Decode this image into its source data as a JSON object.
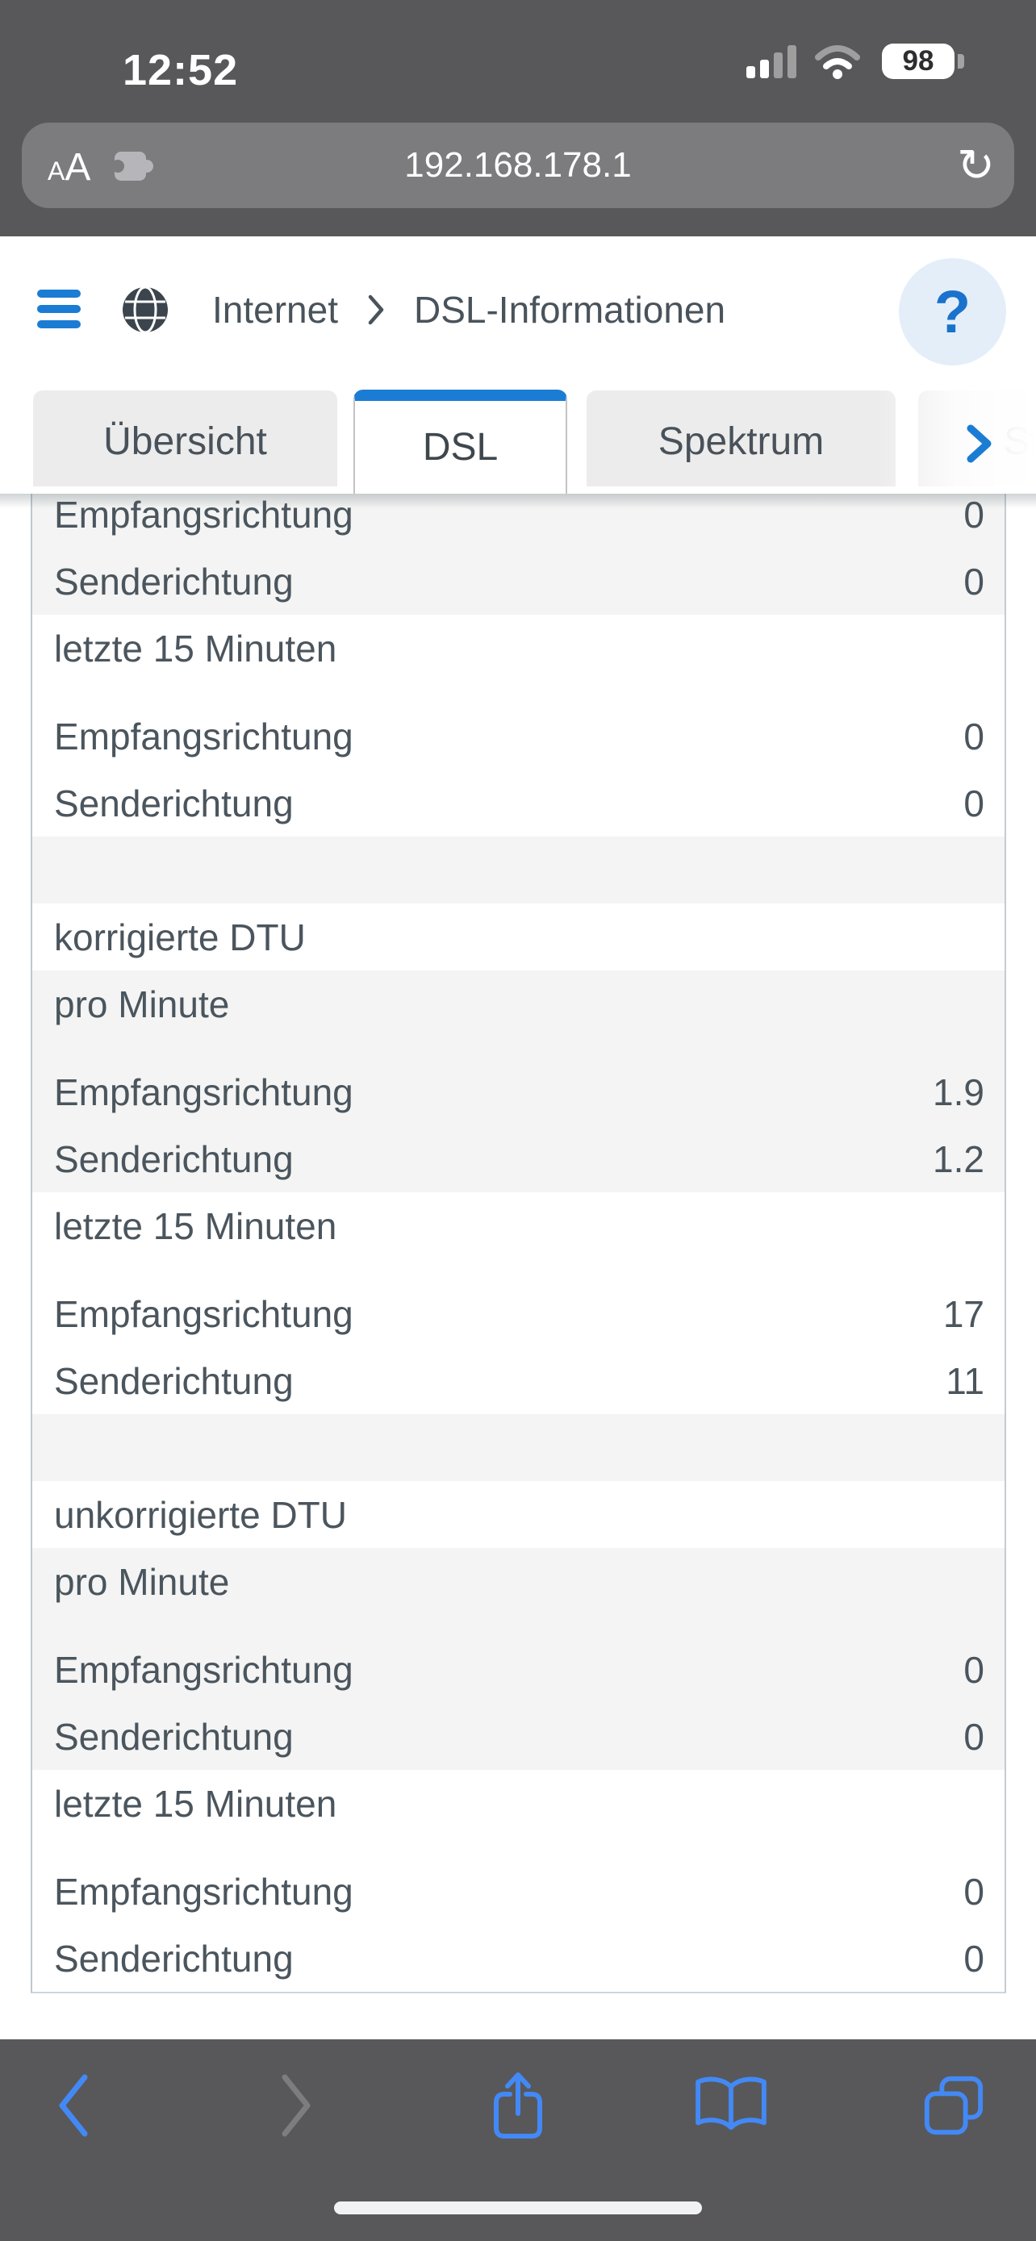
{
  "status_bar": {
    "time": "12:52",
    "battery_level": "98",
    "cellular_bars_filled": 2,
    "cellular_bars_total": 4,
    "wifi_strength": "2 of 3 arcs lit"
  },
  "url_bar": {
    "text_size_label": "AA",
    "url": "192.168.178.1",
    "reload_glyph": "↻"
  },
  "nav": {
    "breadcrumb": {
      "level1": "Internet",
      "page": "DSL-Informationen"
    },
    "help_label": "?"
  },
  "tabs": [
    {
      "id": "uebersicht",
      "label": "Übersicht",
      "active": false
    },
    {
      "id": "dsl",
      "label": "DSL",
      "active": true
    },
    {
      "id": "spektrum",
      "label": "Spektrum",
      "active": false
    },
    {
      "id": "statistik",
      "label": "Statistik",
      "active": false,
      "partially_hidden": true
    }
  ],
  "table": {
    "rows": [
      {
        "type": "data",
        "label": "Empfangsrichtung",
        "value": "0",
        "shade": "grey"
      },
      {
        "type": "data",
        "label": "Senderichtung",
        "value": "0",
        "shade": "grey"
      },
      {
        "type": "subheader",
        "label": "letzte 15 Minuten",
        "shade": "white"
      },
      {
        "type": "data",
        "label": "Empfangsrichtung",
        "value": "0",
        "shade": "white"
      },
      {
        "type": "data",
        "label": "Senderichtung",
        "value": "0",
        "shade": "white"
      },
      {
        "type": "spacer",
        "shade": "grey"
      },
      {
        "type": "section",
        "label": "korrigierte DTU",
        "shade": "white"
      },
      {
        "type": "subheader",
        "label": "pro Minute",
        "shade": "grey"
      },
      {
        "type": "data",
        "label": "Empfangsrichtung",
        "value": "1.9",
        "shade": "grey"
      },
      {
        "type": "data",
        "label": "Senderichtung",
        "value": "1.2",
        "shade": "grey"
      },
      {
        "type": "subheader",
        "label": "letzte 15 Minuten",
        "shade": "white"
      },
      {
        "type": "data",
        "label": "Empfangsrichtung",
        "value": "17",
        "shade": "white"
      },
      {
        "type": "data",
        "label": "Senderichtung",
        "value": "11",
        "shade": "white"
      },
      {
        "type": "spacer",
        "shade": "grey"
      },
      {
        "type": "section",
        "label": "unkorrigierte DTU",
        "shade": "white"
      },
      {
        "type": "subheader",
        "label": "pro Minute",
        "shade": "grey"
      },
      {
        "type": "data",
        "label": "Empfangsrichtung",
        "value": "0",
        "shade": "grey"
      },
      {
        "type": "data",
        "label": "Senderichtung",
        "value": "0",
        "shade": "grey"
      },
      {
        "type": "subheader",
        "label": "letzte 15 Minuten",
        "shade": "white"
      },
      {
        "type": "data",
        "label": "Empfangsrichtung",
        "value": "0",
        "shade": "white"
      },
      {
        "type": "data",
        "label": "Senderichtung",
        "value": "0",
        "shade": "white"
      }
    ]
  },
  "toolbar_icons": [
    "chevron-left-back",
    "chevron-right-forward",
    "share-up-arrow",
    "open-book-bookmarks",
    "stacked-squares-tabs"
  ],
  "icons": {
    "menu": "hamburger",
    "site": "globe",
    "breadcrumb_separator": "chevron-right",
    "tabs_overflow": "chevron-right",
    "extensions": "puzzle-piece",
    "reload": "circular-arrow",
    "help": "question-mark"
  },
  "colors": {
    "accent_blue": "#1b7cd4",
    "safari_icon_blue": "#4389f6",
    "chrome_grey": "#58585a",
    "url_bar_grey": "#7c7c7e",
    "row_grey": "#f3f4f3",
    "table_text": "#4b555d",
    "help_bg": "#e4eef9",
    "table_border": "#bcc8cd"
  }
}
